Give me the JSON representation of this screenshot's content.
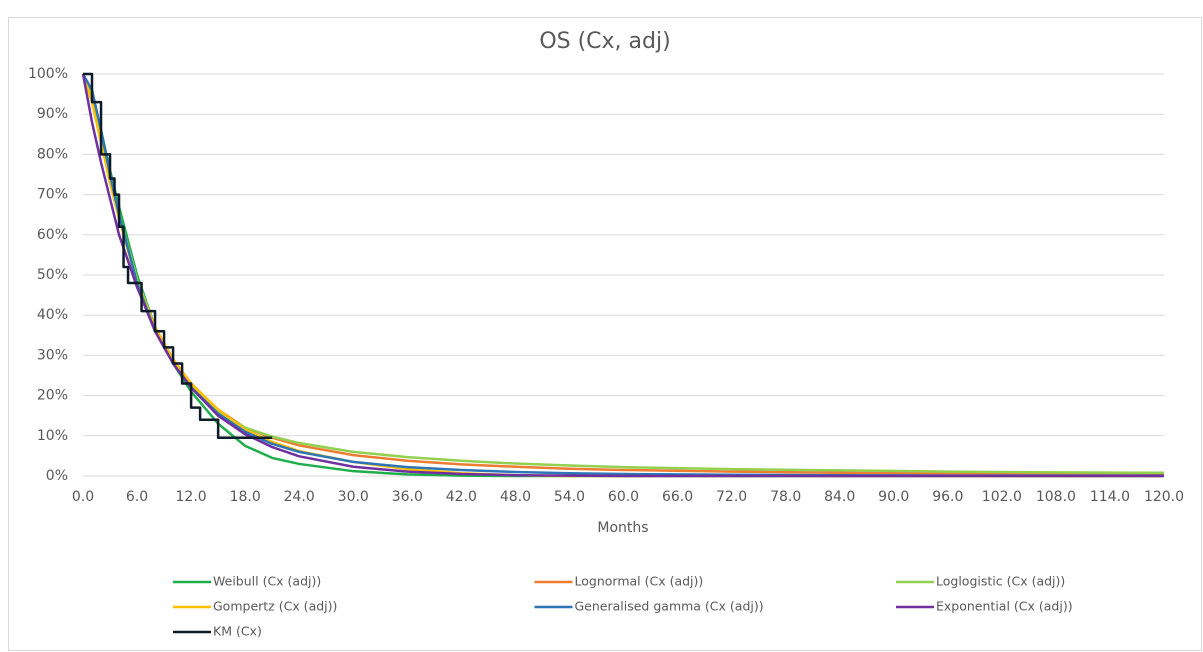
{
  "chart_data": {
    "type": "line",
    "title": "OS (Cx, adj)",
    "x_label": "Months",
    "xlim": [
      0,
      120
    ],
    "ylim": [
      0,
      100
    ],
    "xticks": [
      {
        "value": 0,
        "label": "0.0"
      },
      {
        "value": 6,
        "label": "6.0"
      },
      {
        "value": 12,
        "label": "12.0"
      },
      {
        "value": 18,
        "label": "18.0"
      },
      {
        "value": 24,
        "label": "24.0"
      },
      {
        "value": 30,
        "label": "30.0"
      },
      {
        "value": 36,
        "label": "36.0"
      },
      {
        "value": 42,
        "label": "42.0"
      },
      {
        "value": 48,
        "label": "48.0"
      },
      {
        "value": 54,
        "label": "54.0"
      },
      {
        "value": 60,
        "label": "60.0"
      },
      {
        "value": 66,
        "label": "66.0"
      },
      {
        "value": 72,
        "label": "72.0"
      },
      {
        "value": 78,
        "label": "78.0"
      },
      {
        "value": 84,
        "label": "84.0"
      },
      {
        "value": 90,
        "label": "90.0"
      },
      {
        "value": 96,
        "label": "96.0"
      },
      {
        "value": 102,
        "label": "102.0"
      },
      {
        "value": 108,
        "label": "108.0"
      },
      {
        "value": 114,
        "label": "114.0"
      },
      {
        "value": 120,
        "label": "120.0"
      }
    ],
    "yticks": [
      {
        "value": 0,
        "label": "0%"
      },
      {
        "value": 10,
        "label": "10%"
      },
      {
        "value": 20,
        "label": "20%"
      },
      {
        "value": 30,
        "label": "30%"
      },
      {
        "value": 40,
        "label": "40%"
      },
      {
        "value": 50,
        "label": "50%"
      },
      {
        "value": 60,
        "label": "60%"
      },
      {
        "value": 70,
        "label": "70%"
      },
      {
        "value": 80,
        "label": "80%"
      },
      {
        "value": 90,
        "label": "90%"
      },
      {
        "value": 100,
        "label": "100%"
      }
    ],
    "grid": true,
    "x": [
      0,
      1,
      2,
      3,
      4,
      6,
      8,
      10,
      12,
      15,
      18,
      21,
      24,
      30,
      36,
      42,
      48,
      54,
      60,
      72,
      84,
      96,
      108,
      120
    ],
    "series": [
      {
        "name": "Weibull (Cx (adj))",
        "color": "#1fae4b",
        "values": [
          100,
          95,
          86,
          76,
          67,
          50,
          37,
          28,
          21,
          13,
          7.5,
          4.5,
          3,
          1.2,
          0.4,
          0.1,
          0,
          0,
          0,
          0,
          0,
          0,
          0,
          0
        ]
      },
      {
        "name": "Lognormal (Cx (adj))",
        "color": "#ed7d31",
        "values": [
          100,
          94,
          84,
          74,
          65,
          48,
          37,
          29,
          23,
          16.5,
          12,
          9.5,
          7.6,
          5.2,
          3.8,
          2.9,
          2.3,
          1.8,
          1.5,
          1.1,
          0.8,
          0.6,
          0.5,
          0.4
        ]
      },
      {
        "name": "Loglogistic (Cx (adj))",
        "color": "#92d050",
        "values": [
          100,
          95,
          85,
          75,
          65,
          49,
          37,
          28.5,
          22.5,
          16,
          12,
          9.8,
          8.2,
          6,
          4.7,
          3.8,
          3.1,
          2.6,
          2.2,
          1.7,
          1.4,
          1.1,
          0.9,
          0.8
        ]
      },
      {
        "name": "Gompertz (Cx (adj))",
        "color": "#ffc000",
        "values": [
          100,
          93,
          83,
          73,
          64,
          48,
          37,
          29,
          23,
          16.5,
          11.5,
          8.5,
          6.2,
          3.5,
          1.7,
          0.7,
          0.2,
          0,
          0,
          0,
          0,
          0,
          0,
          0
        ]
      },
      {
        "name": "Generalised gamma (Cx (adj))",
        "color": "#2e75b6",
        "values": [
          100,
          96,
          86,
          75,
          65,
          48,
          36,
          28,
          22,
          15.5,
          11,
          8,
          6,
          3.5,
          2.2,
          1.5,
          1,
          0.7,
          0.5,
          0.3,
          0.2,
          0.1,
          0.1,
          0.1
        ]
      },
      {
        "name": "Exponential (Cx (adj))",
        "color": "#7030a0",
        "values": [
          100,
          88,
          78,
          69,
          60,
          47,
          36,
          28,
          22,
          15,
          10.4,
          7.2,
          4.9,
          2.3,
          1.1,
          0.5,
          0.2,
          0.1,
          0,
          0,
          0,
          0,
          0,
          0
        ]
      },
      {
        "name": "KM (Cx)",
        "color": "#0d1b2a",
        "x": [
          0,
          1,
          1,
          2,
          2,
          3,
          3,
          3.5,
          3.5,
          4,
          4,
          4.5,
          4.5,
          5,
          5,
          6.5,
          6.5,
          8,
          8,
          9,
          9,
          10,
          10,
          11,
          11,
          12,
          12,
          13,
          13,
          15,
          15,
          21
        ],
        "values": [
          100,
          100,
          93,
          93,
          80,
          80,
          74,
          74,
          70,
          70,
          62,
          62,
          52,
          52,
          48,
          48,
          41,
          41,
          36,
          36,
          32,
          32,
          28,
          28,
          23,
          23,
          17,
          17,
          14,
          14,
          9.5,
          9.5
        ]
      }
    ]
  }
}
